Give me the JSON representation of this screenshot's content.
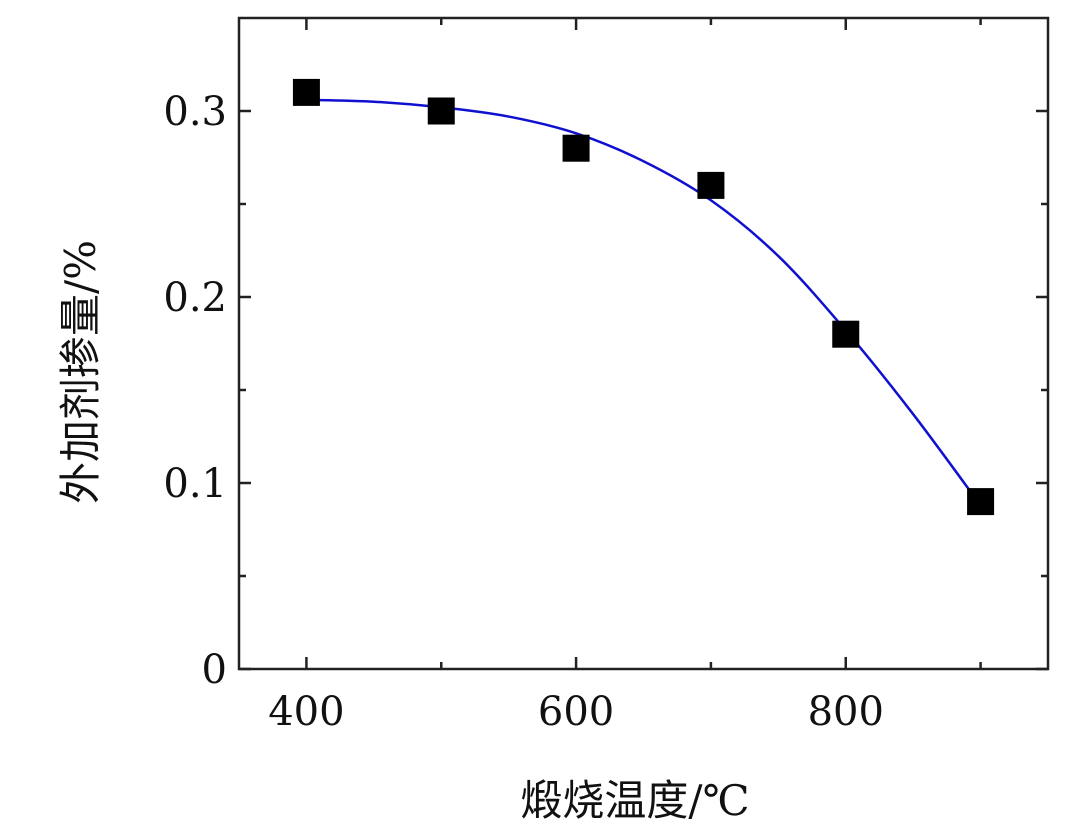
{
  "chart_data": {
    "type": "scatter",
    "xlabel": "煅烧温度/℃",
    "ylabel": "外加剂掺量/%",
    "xlim": [
      350,
      950
    ],
    "ylim": [
      0,
      0.35
    ],
    "x_ticks": [
      400,
      600,
      800
    ],
    "x_minor_ticks": [
      500,
      700,
      900
    ],
    "y_ticks": [
      {
        "value": 0,
        "label": "0"
      },
      {
        "value": 0.1,
        "label": "0.1"
      },
      {
        "value": 0.2,
        "label": "0.2"
      },
      {
        "value": 0.3,
        "label": "0.3"
      }
    ],
    "y_minor_ticks": [
      0.05,
      0.15,
      0.25
    ],
    "series": [
      {
        "marker": "square",
        "color": "#000000",
        "x": [
          400,
          500,
          600,
          700,
          800,
          900
        ],
        "y": [
          0.31,
          0.3,
          0.28,
          0.26,
          0.18,
          0.09
        ]
      }
    ],
    "fit_curve": {
      "color": "#1010d0",
      "x": [
        400,
        450,
        500,
        550,
        600,
        650,
        700,
        750,
        800,
        850,
        900
      ],
      "y": [
        0.306,
        0.305,
        0.302,
        0.297,
        0.288,
        0.273,
        0.252,
        0.222,
        0.182,
        0.137,
        0.088
      ]
    },
    "grid": false,
    "box": true
  }
}
